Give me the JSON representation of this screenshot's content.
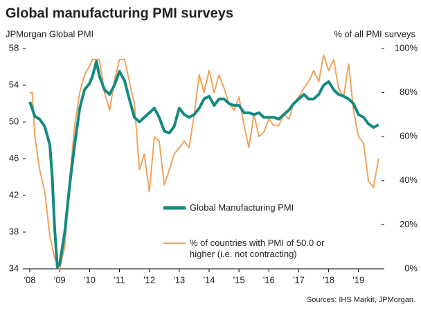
{
  "chart_data": {
    "type": "line",
    "title": "Global manufacturing PMI surveys",
    "y_label": "JPMorgan Global PMI",
    "y2_label": "% of all PMI surveys",
    "source": "Sources: IHS Markit, JPMorgan.",
    "xlim": [
      2007.86,
      2019.77
    ],
    "xticks": [
      {
        "value": 2008,
        "label": "'08"
      },
      {
        "value": 2009,
        "label": "'09"
      },
      {
        "value": 2010,
        "label": "'10"
      },
      {
        "value": 2011,
        "label": "'11"
      },
      {
        "value": 2012,
        "label": "'12"
      },
      {
        "value": 2013,
        "label": "'13"
      },
      {
        "value": 2014,
        "label": "'14"
      },
      {
        "value": 2015,
        "label": "'15"
      },
      {
        "value": 2016,
        "label": "'16"
      },
      {
        "value": 2017,
        "label": "'17"
      },
      {
        "value": 2018,
        "label": "'18"
      },
      {
        "value": 2019,
        "label": "'19"
      }
    ],
    "ylim": [
      34,
      58
    ],
    "yticks": [
      34,
      38,
      42,
      46,
      50,
      54,
      58
    ],
    "y2lim": [
      0,
      100
    ],
    "y2ticks": [
      {
        "value": 0,
        "label": "0%"
      },
      {
        "value": 20,
        "label": "20%"
      },
      {
        "value": 40,
        "label": "40%"
      },
      {
        "value": 60,
        "label": "60%"
      },
      {
        "value": 80,
        "label": "80%"
      },
      {
        "value": 100,
        "label": "100%"
      }
    ],
    "grid": false,
    "series": [
      {
        "name": "Global Manufacturing PMI",
        "color": "#138a80",
        "x": [
          2008.0,
          2008.17,
          2008.33,
          2008.5,
          2008.67,
          2008.75,
          2008.83,
          2008.92,
          2009.0,
          2009.17,
          2009.33,
          2009.5,
          2009.67,
          2009.83,
          2010.0,
          2010.1,
          2010.23,
          2010.33,
          2010.5,
          2010.67,
          2010.83,
          2011.0,
          2011.17,
          2011.33,
          2011.5,
          2011.67,
          2011.83,
          2012.0,
          2012.17,
          2012.33,
          2012.5,
          2012.67,
          2012.83,
          2013.0,
          2013.17,
          2013.33,
          2013.5,
          2013.67,
          2013.83,
          2014.0,
          2014.17,
          2014.33,
          2014.5,
          2014.67,
          2014.83,
          2015.0,
          2015.17,
          2015.33,
          2015.5,
          2015.67,
          2015.83,
          2016.0,
          2016.17,
          2016.33,
          2016.5,
          2016.67,
          2016.83,
          2017.0,
          2017.17,
          2017.33,
          2017.5,
          2017.67,
          2017.83,
          2018.0,
          2018.17,
          2018.33,
          2018.5,
          2018.67,
          2018.83,
          2019.0,
          2019.17,
          2019.33,
          2019.5,
          2019.67
        ],
        "values": [
          52.2,
          50.6,
          50.3,
          49.5,
          47.5,
          44.0,
          38.5,
          34.2,
          34.5,
          38.0,
          43.0,
          47.5,
          51.5,
          53.5,
          54.2,
          55.0,
          56.6,
          55.0,
          53.5,
          53.0,
          54.0,
          55.5,
          54.5,
          52.5,
          50.5,
          50.0,
          50.5,
          51.0,
          51.5,
          50.5,
          49.0,
          48.8,
          49.5,
          51.5,
          50.8,
          50.5,
          50.8,
          51.5,
          52.5,
          52.8,
          51.8,
          52.5,
          52.5,
          52.0,
          51.8,
          51.8,
          51.0,
          51.0,
          50.8,
          51.0,
          50.5,
          50.5,
          50.5,
          50.3,
          50.8,
          51.3,
          52.0,
          52.5,
          53.0,
          52.5,
          52.5,
          53.0,
          54.0,
          54.4,
          53.5,
          53.0,
          52.8,
          52.5,
          52.0,
          50.8,
          50.5,
          49.8,
          49.4,
          49.7
        ]
      },
      {
        "name": "% of countries with PMI of 50.0 or higher (i.e. not contracting)",
        "color": "#f0a35b",
        "axis": "y2",
        "x": [
          2008.0,
          2008.08,
          2008.17,
          2008.33,
          2008.5,
          2008.67,
          2008.83,
          2009.0,
          2009.17,
          2009.33,
          2009.5,
          2009.67,
          2009.83,
          2010.0,
          2010.1,
          2010.33,
          2010.5,
          2010.67,
          2010.83,
          2011.0,
          2011.17,
          2011.33,
          2011.5,
          2011.67,
          2011.83,
          2012.0,
          2012.17,
          2012.33,
          2012.5,
          2012.67,
          2012.83,
          2013.0,
          2013.17,
          2013.33,
          2013.5,
          2013.67,
          2013.83,
          2014.0,
          2014.17,
          2014.33,
          2014.5,
          2014.67,
          2014.83,
          2015.0,
          2015.17,
          2015.33,
          2015.5,
          2015.67,
          2015.83,
          2016.0,
          2016.17,
          2016.33,
          2016.5,
          2016.67,
          2016.83,
          2017.0,
          2017.17,
          2017.33,
          2017.5,
          2017.67,
          2017.83,
          2018.0,
          2018.17,
          2018.33,
          2018.5,
          2018.67,
          2018.83,
          2019.0,
          2019.17,
          2019.33,
          2019.5,
          2019.67
        ],
        "values": [
          80,
          80,
          60,
          45,
          35,
          15,
          5,
          0,
          10,
          40,
          65,
          80,
          88,
          92,
          95,
          95,
          80,
          72,
          85,
          95,
          95,
          85,
          75,
          45,
          52,
          35,
          60,
          58,
          38,
          45,
          52,
          55,
          58,
          55,
          70,
          88,
          80,
          90,
          80,
          88,
          82,
          75,
          72,
          78,
          65,
          55,
          70,
          60,
          62,
          68,
          65,
          65,
          70,
          68,
          75,
          78,
          82,
          85,
          90,
          85,
          97,
          90,
          95,
          82,
          78,
          93,
          72,
          60,
          57,
          40,
          37,
          50
        ]
      }
    ]
  }
}
